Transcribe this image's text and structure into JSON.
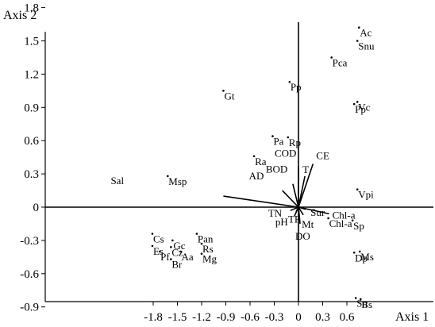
{
  "chart_data": {
    "type": "scatter",
    "title": "",
    "xlabel": "Axis 1",
    "ylabel": "Axis 2",
    "xlim": [
      -1.9,
      0.8
    ],
    "ylim": [
      -0.97,
      1.95
    ],
    "x_ticks": [
      -1.8,
      -1.5,
      -1.2,
      -0.9,
      -0.6,
      -0.3,
      0,
      0.3,
      0.6
    ],
    "x_tick_labels": [
      "-1.8",
      "-1.5",
      "-1.2",
      "-0.9",
      "-0.6",
      "-0.3",
      "0",
      "0.3",
      "0.6"
    ],
    "y_ticks": [
      -0.9,
      -0.6,
      -0.3,
      0,
      0.3,
      0.6,
      0.9,
      1.2,
      1.5,
      1.8
    ],
    "y_tick_labels": [
      "-0.9",
      "-0.6",
      "-0.3",
      "0",
      "0.3",
      "0.6",
      "0.9",
      "1.2",
      "1.5",
      "1.8"
    ],
    "species": [
      {
        "label": "Ac",
        "x": 0.75,
        "y": 1.62
      },
      {
        "label": "Snu",
        "x": 0.73,
        "y": 1.5
      },
      {
        "label": "Pca",
        "x": 0.41,
        "y": 1.35
      },
      {
        "label": "Pp",
        "x": -0.11,
        "y": 1.13
      },
      {
        "label": "Gt",
        "x": -0.93,
        "y": 1.05
      },
      {
        "label": "Pp",
        "x": 0.69,
        "y": 0.93
      },
      {
        "label": "Vc",
        "x": 0.73,
        "y": 0.95
      },
      {
        "label": "Pa",
        "x": -0.32,
        "y": 0.64
      },
      {
        "label": "Rp",
        "x": -0.13,
        "y": 0.63
      },
      {
        "label": "Ra",
        "x": -0.55,
        "y": 0.46
      },
      {
        "label": "Msp",
        "x": -1.62,
        "y": 0.28
      },
      {
        "label": "Vpi",
        "x": 0.73,
        "y": 0.16
      },
      {
        "label": "Chl-a",
        "x": 0.37,
        "y": -0.1
      },
      {
        "label": "Sp",
        "x": 0.67,
        "y": -0.12
      },
      {
        "label": "Cs",
        "x": -1.81,
        "y": -0.24
      },
      {
        "label": "Pan",
        "x": -1.26,
        "y": -0.24
      },
      {
        "label": "Gc",
        "x": -1.56,
        "y": -0.3
      },
      {
        "label": "Rs",
        "x": -1.2,
        "y": -0.33
      },
      {
        "label": "Es",
        "x": -1.81,
        "y": -0.35
      },
      {
        "label": "Cz",
        "x": -1.58,
        "y": -0.36
      },
      {
        "label": "Pf",
        "x": -1.72,
        "y": -0.4
      },
      {
        "label": "Aa",
        "x": -1.46,
        "y": -0.4
      },
      {
        "label": "Mg",
        "x": -1.2,
        "y": -0.42
      },
      {
        "label": "Br",
        "x": -1.58,
        "y": -0.47
      },
      {
        "label": "Ms",
        "x": 0.76,
        "y": -0.4
      },
      {
        "label": "Dp",
        "x": 0.69,
        "y": -0.41
      },
      {
        "label": "Sn",
        "x": 0.71,
        "y": -0.82
      },
      {
        "label": "Bs",
        "x": 0.77,
        "y": -0.83
      }
    ],
    "env_vectors": [
      {
        "label": "Sal",
        "x": -0.93,
        "y": 0.1
      },
      {
        "label": "AD",
        "x": -0.2,
        "y": 0.15
      },
      {
        "label": "BOD",
        "x": -0.07,
        "y": 0.21
      },
      {
        "label": "COD",
        "x": 0,
        "y": 0.37
      },
      {
        "label": "CE",
        "x": 0.18,
        "y": 0.39
      },
      {
        "label": "T",
        "x": 0.08,
        "y": 0.28
      },
      {
        "label": "TN",
        "x": -0.1,
        "y": -0.03
      },
      {
        "label": "pH",
        "x": -0.05,
        "y": -0.08
      },
      {
        "label": "TP",
        "x": -0.03,
        "y": -0.04
      },
      {
        "label": "Sur",
        "x": 0.09,
        "y": -0.02
      },
      {
        "label": "Mt",
        "x": 0.06,
        "y": -0.07
      },
      {
        "label": "DO",
        "x": 0.02,
        "y": -0.15
      },
      {
        "label": "Chl-a",
        "x": 0.38,
        "y": -0.06
      }
    ],
    "grid": false,
    "legend": "none"
  }
}
